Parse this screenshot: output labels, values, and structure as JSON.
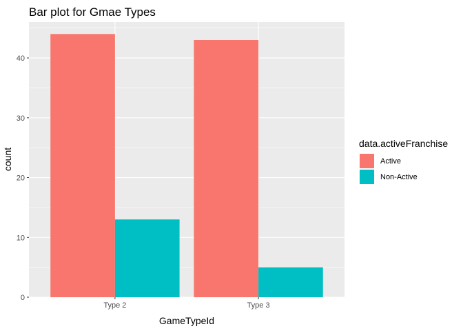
{
  "colors": {
    "panel_bg": "#EBEBEB",
    "grid_major": "#FFFFFF",
    "active": "#F8766D",
    "non_active": "#00BFC4"
  },
  "chart_data": {
    "type": "bar",
    "title": "Bar plot for Gmae Types",
    "xlabel": "GameTypeId",
    "ylabel": "count",
    "categories": [
      "Type 2",
      "Type 3"
    ],
    "series": [
      {
        "name": "Active",
        "values": [
          44,
          43
        ],
        "color": "#F8766D"
      },
      {
        "name": "Non-Active",
        "values": [
          13,
          5
        ],
        "color": "#00BFC4"
      }
    ],
    "ylim": [
      0,
      46
    ],
    "yticks": [
      0,
      10,
      20,
      30,
      40
    ],
    "grid": true,
    "legend": {
      "title": "data.activeFranchise",
      "placement": "right"
    }
  }
}
